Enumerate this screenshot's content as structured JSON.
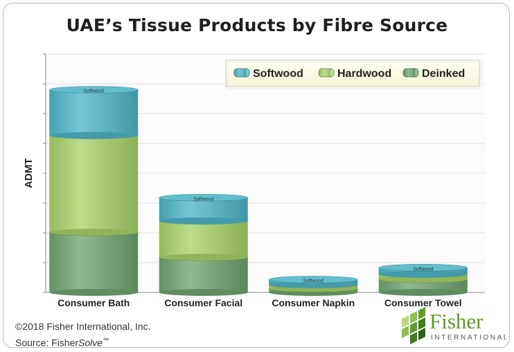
{
  "chart_data": {
    "type": "bar",
    "stacked": true,
    "title": "UAE’s Tissue Products by Fibre Source",
    "ylabel": "ADMT",
    "xlabel": "",
    "ylim": [
      0,
      8
    ],
    "y_tick_labels_shown": false,
    "grid": true,
    "legend_position": "top-right",
    "categories": [
      "Consumer Bath",
      "Consumer Facial",
      "Consumer Napkin",
      "Consumer Towel"
    ],
    "series": [
      {
        "name": "Deinked",
        "color": "#6fa66f",
        "values": [
          2.02,
          1.18,
          0.13,
          0.44
        ]
      },
      {
        "name": "Hardwood",
        "color": "#a9d46a",
        "values": [
          3.25,
          1.22,
          0.13,
          0.17
        ]
      },
      {
        "name": "Softwood",
        "color": "#4fb7c9",
        "values": [
          1.53,
          0.78,
          0.17,
          0.22
        ]
      }
    ],
    "segment_labels": [
      "Deinked",
      "Hardwood",
      "Softwood"
    ]
  },
  "credit": {
    "copyright": "©2018 Fisher International, Inc.",
    "source_prefix": "Source: Fisher",
    "source_product": "Solve",
    "trademark": "™"
  },
  "logo": {
    "name": "Fisher",
    "tagline": "INTERNATIONAL"
  }
}
